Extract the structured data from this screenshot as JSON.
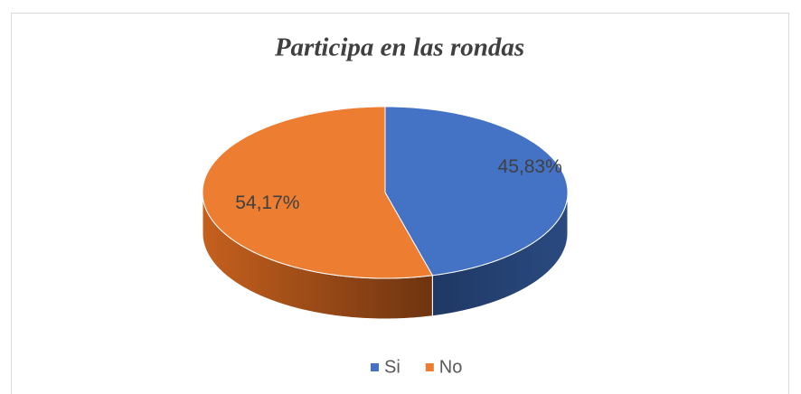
{
  "chart_data": {
    "type": "pie",
    "title": "Participa en las rondas",
    "categories": [
      "Si",
      "No"
    ],
    "values": [
      45.83,
      54.17
    ],
    "value_labels": [
      "45,83%",
      "54,17%"
    ],
    "colors": [
      "#4472c4",
      "#ed7d31"
    ],
    "legend": "bottom"
  }
}
